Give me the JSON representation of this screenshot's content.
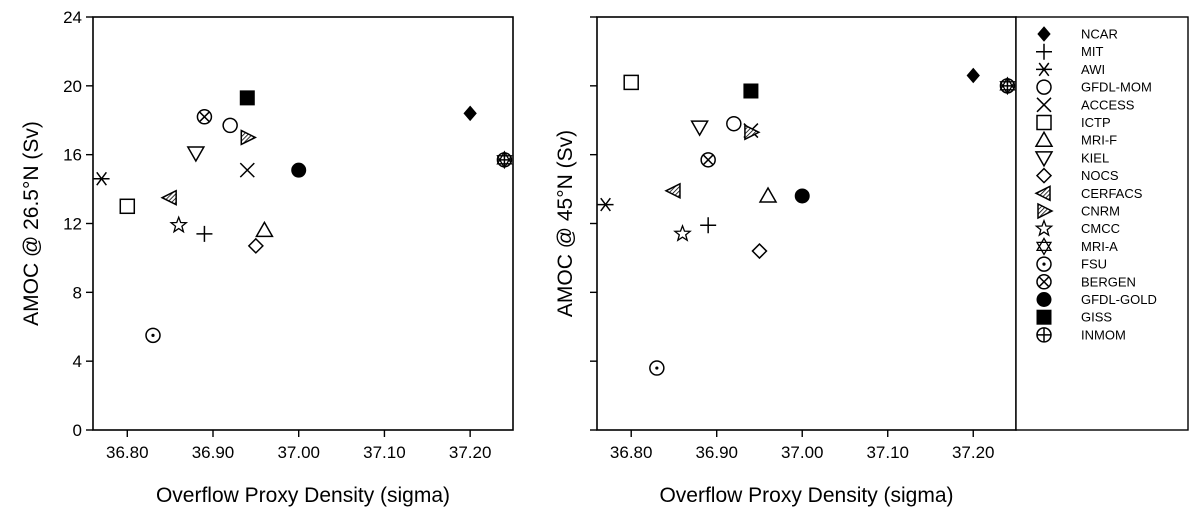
{
  "chart_data": [
    {
      "type": "scatter",
      "xlabel": "Overflow Proxy Density (sigma)",
      "ylabel": "AMOC @ 26.5°N (Sv)",
      "xlim": [
        36.76,
        37.25
      ],
      "ylim": [
        0,
        24
      ],
      "xticks": [
        "36.80",
        "36.90",
        "37.00",
        "37.10",
        "37.20"
      ],
      "xtick_values": [
        36.8,
        36.9,
        37.0,
        37.1,
        37.2
      ],
      "yticks": [
        "0",
        "4",
        "8",
        "12",
        "16",
        "20",
        "24"
      ],
      "ytick_values": [
        0,
        4,
        8,
        12,
        16,
        20,
        24
      ],
      "grid": false,
      "points": [
        {
          "model": "NCAR",
          "x": 37.2,
          "y": 18.4
        },
        {
          "model": "MIT",
          "x": 36.89,
          "y": 11.4
        },
        {
          "model": "AWI",
          "x": 36.77,
          "y": 14.6
        },
        {
          "model": "GFDL-MOM",
          "x": 36.92,
          "y": 17.7
        },
        {
          "model": "ACCESS",
          "x": 36.94,
          "y": 15.1
        },
        {
          "model": "ICTP",
          "x": 36.8,
          "y": 13.0
        },
        {
          "model": "MRI-F",
          "x": 36.96,
          "y": 11.6
        },
        {
          "model": "KIEL",
          "x": 36.88,
          "y": 16.1
        },
        {
          "model": "NOCS",
          "x": 36.95,
          "y": 10.7
        },
        {
          "model": "CERFACS",
          "x": 36.85,
          "y": 13.5
        },
        {
          "model": "CNRM",
          "x": 36.94,
          "y": 17.0
        },
        {
          "model": "CMCC",
          "x": 36.86,
          "y": 11.9
        },
        {
          "model": "MRI-A",
          "x": 37.24,
          "y": 15.7
        },
        {
          "model": "FSU",
          "x": 36.83,
          "y": 5.5
        },
        {
          "model": "BERGEN",
          "x": 36.89,
          "y": 18.2
        },
        {
          "model": "GFDL-GOLD",
          "x": 37.0,
          "y": 15.1
        },
        {
          "model": "GISS",
          "x": 36.94,
          "y": 19.3
        },
        {
          "model": "INMOM",
          "x": 37.24,
          "y": 15.7
        }
      ]
    },
    {
      "type": "scatter",
      "xlabel": "Overflow Proxy Density (sigma)",
      "ylabel": "AMOC @ 45°N (Sv)",
      "xlim": [
        36.76,
        37.25
      ],
      "ylim": [
        0,
        24
      ],
      "xticks": [
        "36.80",
        "36.90",
        "37.00",
        "37.10",
        "37.20"
      ],
      "xtick_values": [
        36.8,
        36.9,
        37.0,
        37.1,
        37.2
      ],
      "yticks": [],
      "ytick_values": [
        0,
        4,
        8,
        12,
        16,
        20,
        24
      ],
      "grid": false,
      "points": [
        {
          "model": "NCAR",
          "x": 37.2,
          "y": 20.6
        },
        {
          "model": "MIT",
          "x": 36.89,
          "y": 11.9
        },
        {
          "model": "AWI",
          "x": 36.77,
          "y": 13.1
        },
        {
          "model": "GFDL-MOM",
          "x": 36.92,
          "y": 17.8
        },
        {
          "model": "ACCESS",
          "x": 36.94,
          "y": 17.4
        },
        {
          "model": "ICTP",
          "x": 36.8,
          "y": 20.2
        },
        {
          "model": "MRI-F",
          "x": 36.96,
          "y": 13.6
        },
        {
          "model": "KIEL",
          "x": 36.88,
          "y": 17.6
        },
        {
          "model": "NOCS",
          "x": 36.95,
          "y": 10.4
        },
        {
          "model": "CERFACS",
          "x": 36.85,
          "y": 13.9
        },
        {
          "model": "CNRM",
          "x": 36.94,
          "y": 17.3
        },
        {
          "model": "CMCC",
          "x": 36.86,
          "y": 11.4
        },
        {
          "model": "MRI-A",
          "x": 37.24,
          "y": 20.0
        },
        {
          "model": "FSU",
          "x": 36.83,
          "y": 3.6
        },
        {
          "model": "BERGEN",
          "x": 36.89,
          "y": 15.7
        },
        {
          "model": "GFDL-GOLD",
          "x": 37.0,
          "y": 13.6
        },
        {
          "model": "GISS",
          "x": 36.94,
          "y": 19.7
        },
        {
          "model": "INMOM",
          "x": 37.24,
          "y": 20.0
        }
      ]
    }
  ],
  "legend": {
    "position": "right",
    "entries": [
      {
        "label": "NCAR",
        "marker": "filled-diamond"
      },
      {
        "label": "MIT",
        "marker": "plus"
      },
      {
        "label": "AWI",
        "marker": "asterisk"
      },
      {
        "label": "GFDL-MOM",
        "marker": "open-circle"
      },
      {
        "label": "ACCESS",
        "marker": "x-cross"
      },
      {
        "label": "ICTP",
        "marker": "open-square"
      },
      {
        "label": "MRI-F",
        "marker": "open-triangle-up"
      },
      {
        "label": "KIEL",
        "marker": "open-triangle-down"
      },
      {
        "label": "NOCS",
        "marker": "open-diamond"
      },
      {
        "label": "CERFACS",
        "marker": "hatched-triangle-left"
      },
      {
        "label": "CNRM",
        "marker": "hatched-triangle-right"
      },
      {
        "label": "CMCC",
        "marker": "open-star"
      },
      {
        "label": "MRI-A",
        "marker": "star-of-david"
      },
      {
        "label": "FSU",
        "marker": "dotted-circle"
      },
      {
        "label": "BERGEN",
        "marker": "circle-x"
      },
      {
        "label": "GFDL-GOLD",
        "marker": "filled-circle"
      },
      {
        "label": "GISS",
        "marker": "filled-square"
      },
      {
        "label": "INMOM",
        "marker": "circle-plus"
      }
    ]
  }
}
